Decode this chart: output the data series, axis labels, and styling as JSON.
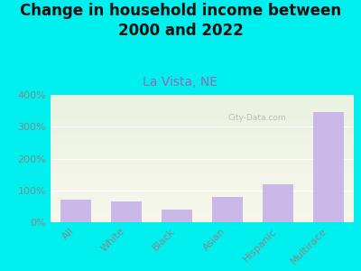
{
  "title": "Change in household income between\n2000 and 2022",
  "subtitle": "La Vista, NE",
  "categories": [
    "All",
    "White",
    "Black",
    "Asian",
    "Hispanic",
    "Multirace"
  ],
  "values": [
    70,
    65,
    40,
    80,
    120,
    345
  ],
  "bar_color": "#c9b8e8",
  "background_color": "#00efef",
  "plot_bg_top": "#eaf2e0",
  "plot_bg_bottom": "#f7f7ec",
  "title_fontsize": 12,
  "subtitle_fontsize": 10,
  "subtitle_color": "#9966bb",
  "title_color": "#111111",
  "ylim": [
    0,
    400
  ],
  "yticks": [
    0,
    100,
    200,
    300,
    400
  ],
  "watermark": "City-Data.com",
  "tick_color": "#888888"
}
